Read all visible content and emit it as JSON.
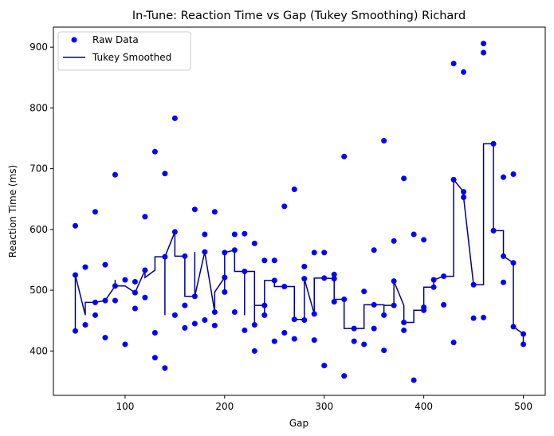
{
  "chart_data": {
    "type": "scatter",
    "title": "In-Tune: Reaction Time vs Gap (Tukey Smoothing) Richard",
    "xlabel": "Gap",
    "ylabel": "Reaction Time (ms)",
    "xlim": [
      28,
      522
    ],
    "ylim": [
      327,
      933
    ],
    "xticks": [
      100,
      200,
      300,
      400,
      500
    ],
    "yticks": [
      400,
      500,
      600,
      700,
      800,
      900
    ],
    "grid": false,
    "legend_position": "top-left",
    "legend": [
      {
        "label": "Raw Data",
        "kind": "marker",
        "color": "#0000ff"
      },
      {
        "label": "Tukey Smoothed",
        "kind": "line",
        "color": "#00008b"
      }
    ],
    "series": [
      {
        "name": "Raw Data",
        "kind": "scatter",
        "color": "#0000ff",
        "points": [
          [
            50,
            606
          ],
          [
            50,
            525
          ],
          [
            50,
            433
          ],
          [
            60,
            538
          ],
          [
            60,
            443
          ],
          [
            70,
            629
          ],
          [
            70,
            480
          ],
          [
            70,
            459
          ],
          [
            80,
            542
          ],
          [
            80,
            483
          ],
          [
            80,
            422
          ],
          [
            90,
            690
          ],
          [
            90,
            507
          ],
          [
            90,
            483
          ],
          [
            100,
            517
          ],
          [
            100,
            411
          ],
          [
            110,
            514
          ],
          [
            110,
            496
          ],
          [
            110,
            470
          ],
          [
            120,
            621
          ],
          [
            120,
            533
          ],
          [
            120,
            488
          ],
          [
            130,
            728
          ],
          [
            130,
            430
          ],
          [
            130,
            389
          ],
          [
            140,
            692
          ],
          [
            140,
            555
          ],
          [
            140,
            372
          ],
          [
            150,
            783
          ],
          [
            150,
            596
          ],
          [
            150,
            459
          ],
          [
            160,
            556
          ],
          [
            160,
            475
          ],
          [
            160,
            438
          ],
          [
            170,
            633
          ],
          [
            170,
            490
          ],
          [
            170,
            445
          ],
          [
            180,
            592
          ],
          [
            180,
            563
          ],
          [
            180,
            451
          ],
          [
            190,
            629
          ],
          [
            190,
            464
          ],
          [
            190,
            442
          ],
          [
            200,
            562
          ],
          [
            200,
            521
          ],
          [
            200,
            497
          ],
          [
            210,
            592
          ],
          [
            210,
            566
          ],
          [
            210,
            464
          ],
          [
            220,
            593
          ],
          [
            220,
            531
          ],
          [
            220,
            434
          ],
          [
            230,
            577
          ],
          [
            230,
            443
          ],
          [
            230,
            400
          ],
          [
            240,
            549
          ],
          [
            240,
            475
          ],
          [
            240,
            459
          ],
          [
            250,
            549
          ],
          [
            250,
            516
          ],
          [
            250,
            416
          ],
          [
            260,
            638
          ],
          [
            260,
            506
          ],
          [
            260,
            430
          ],
          [
            270,
            666
          ],
          [
            270,
            452
          ],
          [
            270,
            420
          ],
          [
            280,
            539
          ],
          [
            280,
            519
          ],
          [
            280,
            451
          ],
          [
            290,
            562
          ],
          [
            290,
            461
          ],
          [
            290,
            418
          ],
          [
            300,
            562
          ],
          [
            300,
            520
          ],
          [
            300,
            376
          ],
          [
            310,
            526
          ],
          [
            310,
            519
          ],
          [
            310,
            481
          ],
          [
            320,
            720
          ],
          [
            320,
            485
          ],
          [
            320,
            359
          ],
          [
            330,
            437
          ],
          [
            330,
            416
          ],
          [
            340,
            498
          ],
          [
            340,
            411
          ],
          [
            350,
            566
          ],
          [
            350,
            476
          ],
          [
            350,
            437
          ],
          [
            360,
            746
          ],
          [
            360,
            459
          ],
          [
            360,
            401
          ],
          [
            370,
            581
          ],
          [
            370,
            515
          ],
          [
            370,
            475
          ],
          [
            380,
            684
          ],
          [
            380,
            447
          ],
          [
            380,
            434
          ],
          [
            390,
            592
          ],
          [
            390,
            352
          ],
          [
            400,
            583
          ],
          [
            400,
            472
          ],
          [
            400,
            467
          ],
          [
            410,
            517
          ],
          [
            410,
            505
          ],
          [
            420,
            523
          ],
          [
            420,
            476
          ],
          [
            430,
            873
          ],
          [
            430,
            682
          ],
          [
            430,
            414
          ],
          [
            440,
            859
          ],
          [
            440,
            662
          ],
          [
            440,
            653
          ],
          [
            450,
            509
          ],
          [
            450,
            454
          ],
          [
            460,
            906
          ],
          [
            460,
            891
          ],
          [
            460,
            455
          ],
          [
            470,
            741
          ],
          [
            470,
            598
          ],
          [
            480,
            686
          ],
          [
            480,
            556
          ],
          [
            480,
            513
          ],
          [
            490,
            691
          ],
          [
            490,
            545
          ],
          [
            490,
            440
          ],
          [
            500,
            428
          ],
          [
            500,
            411
          ]
        ]
      },
      {
        "name": "Tukey Smoothed",
        "kind": "line",
        "color": "#00008b",
        "points": [
          [
            50,
            525
          ],
          [
            50,
            433
          ],
          [
            50,
            525
          ],
          [
            60,
            459
          ],
          [
            60,
            480
          ],
          [
            70,
            480
          ],
          [
            80,
            483
          ],
          [
            90,
            507
          ],
          [
            90,
            517
          ],
          [
            90,
            507
          ],
          [
            100,
            507
          ],
          [
            110,
            496
          ],
          [
            120,
            533
          ],
          [
            120,
            521
          ],
          [
            130,
            533
          ],
          [
            130,
            555
          ],
          [
            140,
            555
          ],
          [
            140,
            459
          ],
          [
            140,
            555
          ],
          [
            150,
            596
          ],
          [
            150,
            556
          ],
          [
            160,
            556
          ],
          [
            160,
            490
          ],
          [
            170,
            490
          ],
          [
            170,
            563
          ],
          [
            170,
            490
          ],
          [
            180,
            563
          ],
          [
            190,
            464
          ],
          [
            190,
            497
          ],
          [
            200,
            521
          ],
          [
            200,
            497
          ],
          [
            200,
            562
          ],
          [
            210,
            566
          ],
          [
            210,
            531
          ],
          [
            220,
            531
          ],
          [
            220,
            459
          ],
          [
            220,
            531
          ],
          [
            230,
            531
          ],
          [
            230,
            443
          ],
          [
            230,
            475
          ],
          [
            240,
            475
          ],
          [
            240,
            459
          ],
          [
            240,
            516
          ],
          [
            250,
            516
          ],
          [
            250,
            506
          ],
          [
            260,
            506
          ],
          [
            270,
            506
          ],
          [
            270,
            452
          ],
          [
            280,
            452
          ],
          [
            280,
            519
          ],
          [
            280,
            519
          ],
          [
            290,
            461
          ],
          [
            290,
            520
          ],
          [
            300,
            520
          ],
          [
            310,
            519
          ],
          [
            310,
            481
          ],
          [
            310,
            485
          ],
          [
            320,
            485
          ],
          [
            320,
            437
          ],
          [
            330,
            437
          ],
          [
            340,
            437
          ],
          [
            340,
            476
          ],
          [
            350,
            476
          ],
          [
            360,
            476
          ],
          [
            360,
            459
          ],
          [
            360,
            475
          ],
          [
            370,
            475
          ],
          [
            370,
            515
          ],
          [
            380,
            475
          ],
          [
            380,
            447
          ],
          [
            390,
            447
          ],
          [
            390,
            467
          ],
          [
            400,
            467
          ],
          [
            400,
            505
          ],
          [
            410,
            505
          ],
          [
            410,
            517
          ],
          [
            420,
            523
          ],
          [
            430,
            523
          ],
          [
            430,
            682
          ],
          [
            440,
            662
          ],
          [
            440,
            653
          ],
          [
            450,
            509
          ],
          [
            460,
            509
          ],
          [
            460,
            741
          ],
          [
            470,
            741
          ],
          [
            470,
            598
          ],
          [
            480,
            598
          ],
          [
            480,
            556
          ],
          [
            490,
            545
          ],
          [
            490,
            440
          ],
          [
            500,
            428
          ],
          [
            500,
            411
          ]
        ]
      }
    ]
  }
}
